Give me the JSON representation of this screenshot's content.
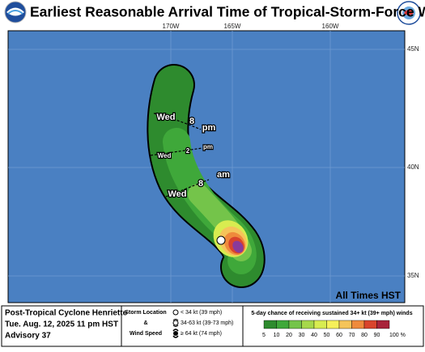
{
  "header": {
    "title": "Earliest Reasonable Arrival Time of Tropical-Storm-Force Winds"
  },
  "map": {
    "lon_labels": [
      "170W",
      "165W",
      "160W"
    ],
    "lat_labels": [
      "45N",
      "40N",
      "35N"
    ],
    "time_labels": [
      {
        "day": "Wed",
        "hour": "8",
        "period": "pm"
      },
      {
        "day": "Wed",
        "hour": "2",
        "period": "pm"
      },
      {
        "day": "Wed",
        "hour": "8",
        "period": "am"
      }
    ],
    "time_zone_note": "All Times HST"
  },
  "footer": {
    "storm": "Post-Tropical Cyclone Henriette",
    "issued": "Tue. Aug. 12, 2025  11 pm HST",
    "advisory": "Advisory 37",
    "key_title": [
      "Storm Location",
      "&",
      "Wind Speed"
    ],
    "key_items": [
      "< 34 kt (39 mph)",
      "34-63 kt (39-73 mph)",
      "≥ 64 kt (74 mph)"
    ],
    "colorbar_title": "5-day chance of receiving sustained 34+ kt (39+ mph) winds",
    "colorbar_labels": [
      "5",
      "10",
      "20",
      "30",
      "40",
      "50",
      "60",
      "70",
      "80",
      "90",
      "100 %"
    ],
    "colorbar_colors": [
      "#2e8b2e",
      "#3fa83a",
      "#74c44a",
      "#a6d84a",
      "#d8ec50",
      "#f6f05a",
      "#f5c45a",
      "#ef8a3c",
      "#d9442c",
      "#a8233a"
    ]
  }
}
